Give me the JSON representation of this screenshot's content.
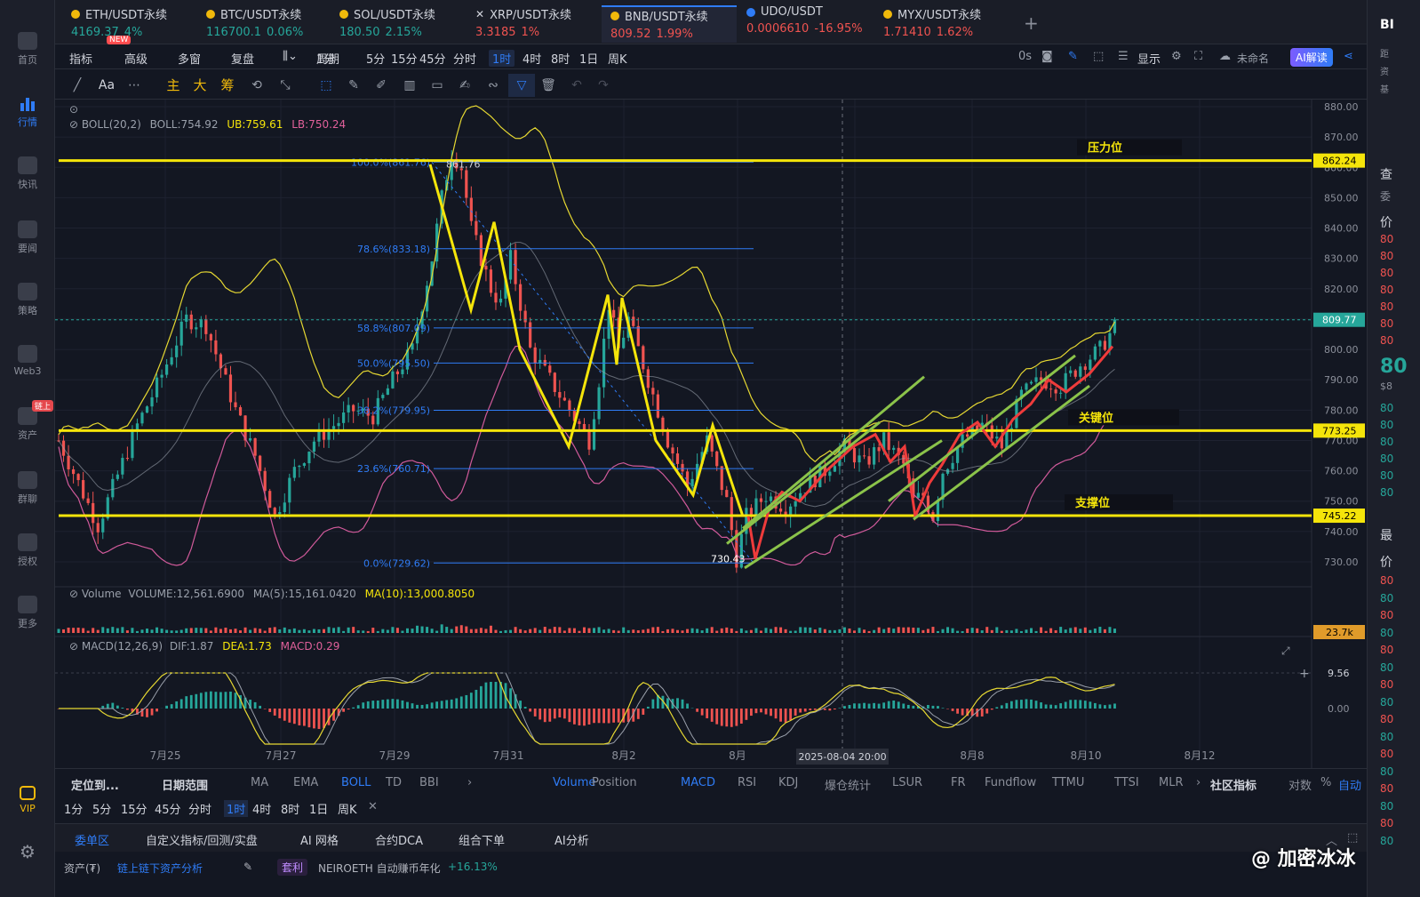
{
  "sidebar": {
    "items": [
      {
        "label": "首页",
        "icon": "home-icon"
      },
      {
        "label": "行情",
        "icon": "market-chart-icon",
        "active": true
      },
      {
        "label": "快讯",
        "icon": "flash-news-icon"
      },
      {
        "label": "要闻",
        "icon": "news-icon"
      },
      {
        "label": "策略",
        "icon": "strategy-robot-icon"
      },
      {
        "label": "Web3",
        "icon": "web3-icon"
      },
      {
        "label": "资产",
        "icon": "wallet-icon",
        "badge": "链上"
      },
      {
        "label": "群聊",
        "icon": "chat-icon"
      },
      {
        "label": "授权",
        "icon": "authorize-icon"
      },
      {
        "label": "更多",
        "icon": "more-grid-icon"
      },
      {
        "label": "VIP",
        "icon": "vip-diamond-icon"
      }
    ],
    "settings_icon": "gear-icon"
  },
  "tabs": [
    {
      "name": "ETH/USDT永续",
      "price": "4169.37",
      "change": "4%",
      "dir": "up",
      "badge": "NEW"
    },
    {
      "name": "BTC/USDT永续",
      "price": "116700.1",
      "change": "0.06%",
      "dir": "up"
    },
    {
      "name": "SOL/USDT永续",
      "price": "180.50",
      "change": "2.15%",
      "dir": "up"
    },
    {
      "name": "XRP/USDT永续",
      "price": "3.3185",
      "change": "1%",
      "dir": "dn"
    },
    {
      "name": "BNB/USDT永续",
      "price": "809.52",
      "change": "1.99%",
      "dir": "dn",
      "active": true
    },
    {
      "name": "UDO/USDT",
      "price": "0.0006610",
      "change": "-16.95%",
      "dir": "dn"
    },
    {
      "name": "MYX/USDT永续",
      "price": "1.71410",
      "change": "1.62%",
      "dir": "dn"
    }
  ],
  "toolbar": {
    "items": [
      "指标",
      "高级",
      "多窗",
      "复盘",
      "周期",
      "1分",
      "5分",
      "15分",
      "45分",
      "分时",
      "1时",
      "4时",
      "8时",
      "1日",
      "周K"
    ],
    "selected": "1时",
    "right": {
      "countdown": "0s",
      "display": "显示",
      "layout_name": "未命名",
      "ai": "AI解读"
    }
  },
  "drawing_tools": {
    "font": "Aa",
    "zhu": "主",
    "da": "大",
    "chou": "筹"
  },
  "indicators": {
    "boll": {
      "name": "BOLL(20,2)",
      "boll": "BOLL:754.92",
      "ub": "UB:759.61",
      "lb": "LB:750.24"
    },
    "volume": {
      "name": "Volume",
      "vol": "VOLUME:12,561.6900",
      "ma5": "MA(5):15,161.0420",
      "ma10": "MA(10):13,000.8050",
      "last": "23.7k"
    },
    "macd": {
      "name": "MACD(12,26,9)",
      "dif": "DIF:1.87",
      "dea": "DEA:1.73",
      "macd": "MACD:0.29",
      "axis_top": "9.56",
      "axis_zero": "0.00"
    }
  },
  "price_axis": [
    "880.00",
    "870.00",
    "860.00",
    "850.00",
    "840.00",
    "830.00",
    "820.00",
    "810.00",
    "800.00",
    "790.00",
    "780.00",
    "770.00",
    "760.00",
    "750.00",
    "740.00",
    "730.00"
  ],
  "price_tags": {
    "resistance": "862.24",
    "current": "809.77",
    "key": "773.25",
    "support": "745.22"
  },
  "annotations": {
    "resistance": "压力位",
    "key": "关键位",
    "support": "支撑位",
    "low": "730.43",
    "high": "861.76"
  },
  "fib": [
    {
      "label": "100.0%(861.76)",
      "price": 861.76
    },
    {
      "label": "78.6%(833.18)",
      "price": 833.18
    },
    {
      "label": "58.8%(807.09)",
      "price": 807.09
    },
    {
      "label": "50.0%(795.50)",
      "price": 795.5
    },
    {
      "label": "38.2%(779.95)",
      "price": 779.95
    },
    {
      "label": "23.6%(760.71)",
      "price": 760.71
    },
    {
      "label": "0.0%(729.62)",
      "price": 729.62
    }
  ],
  "time_axis": [
    "7月25",
    "7月27",
    "7月29",
    "7月31",
    "8月2",
    "8月",
    "8月6",
    "8月8",
    "8月10",
    "8月12"
  ],
  "crosshair_time": "2025-08-04 20:00",
  "bottom_tabs": [
    "定位到...",
    "日期范围",
    "MA",
    "EMA",
    "BOLL",
    "TD",
    "BBI",
    "Volume",
    "Position",
    "MACD",
    "RSI",
    "KDJ",
    "爆仓统计",
    "LSUR",
    "FR",
    "Fundflow",
    "TTMU",
    "TTSI",
    "MLR",
    "社区指标",
    "对数",
    "%",
    "自动"
  ],
  "intervals": [
    "1分",
    "5分",
    "15分",
    "45分",
    "分时",
    "1时",
    "4时",
    "8时",
    "1日",
    "周K"
  ],
  "panel_tabs": [
    "委单区",
    "自定义指标/回测/实盘",
    "AI 网格",
    "合约DCA",
    "组合下单",
    "AI分析"
  ],
  "status": {
    "assets": "资产(₮)",
    "analysis": "链上链下资产分析",
    "tag": "套利",
    "promo": "NEIROETH 自动赚币年化",
    "promo_val": "+16.13%"
  },
  "right_edge": {
    "title": "BI",
    "labels": [
      "距",
      "资",
      "基"
    ],
    "query": "查",
    "entrust": "委",
    "price_label": "价",
    "big": "80",
    "sub": "$8",
    "latest": "最"
  },
  "watermark": "@ 加密冰冰",
  "colors": {
    "up": "#26a69a",
    "down": "#ef5350",
    "accent": "#2f7cf6",
    "level": "#f5e50a",
    "channel": "#8bc34a"
  },
  "chart_data": {
    "type": "candlestick",
    "symbol": "BNB/USDT永续",
    "interval": "1时",
    "ylim": [
      725,
      885
    ],
    "levels": [
      862.24,
      773.25,
      745.22
    ],
    "current": 809.77,
    "path_points": [
      [
        0,
        770
      ],
      [
        4,
        742
      ],
      [
        8,
        775
      ],
      [
        10,
        788
      ],
      [
        13,
        810
      ],
      [
        15,
        808
      ],
      [
        18,
        780
      ],
      [
        20,
        765
      ],
      [
        22,
        745
      ],
      [
        24,
        760
      ],
      [
        26,
        770
      ],
      [
        28,
        775
      ],
      [
        30,
        780
      ],
      [
        32,
        778
      ],
      [
        34,
        790
      ],
      [
        36,
        800
      ],
      [
        38,
        830
      ],
      [
        39,
        850
      ],
      [
        40,
        865
      ],
      [
        41,
        860
      ],
      [
        42,
        840
      ],
      [
        44,
        820
      ],
      [
        45,
        815
      ],
      [
        46,
        830
      ],
      [
        48,
        800
      ],
      [
        50,
        790
      ],
      [
        52,
        780
      ],
      [
        54,
        770
      ],
      [
        55,
        790
      ],
      [
        56,
        815
      ],
      [
        57,
        800
      ],
      [
        58,
        810
      ],
      [
        60,
        790
      ],
      [
        62,
        770
      ],
      [
        64,
        755
      ],
      [
        66,
        770
      ],
      [
        68,
        750
      ],
      [
        69,
        731
      ],
      [
        70,
        745
      ],
      [
        72,
        752
      ],
      [
        74,
        748
      ],
      [
        76,
        755
      ],
      [
        78,
        760
      ],
      [
        80,
        768
      ],
      [
        82,
        762
      ],
      [
        84,
        770
      ],
      [
        86,
        762
      ],
      [
        87,
        750
      ],
      [
        88,
        752
      ],
      [
        89,
        745
      ],
      [
        90,
        760
      ],
      [
        92,
        770
      ],
      [
        94,
        775
      ],
      [
        96,
        768
      ],
      [
        98,
        785
      ],
      [
        100,
        790
      ],
      [
        102,
        788
      ],
      [
        104,
        795
      ],
      [
        106,
        800
      ],
      [
        108,
        809.77
      ]
    ]
  }
}
